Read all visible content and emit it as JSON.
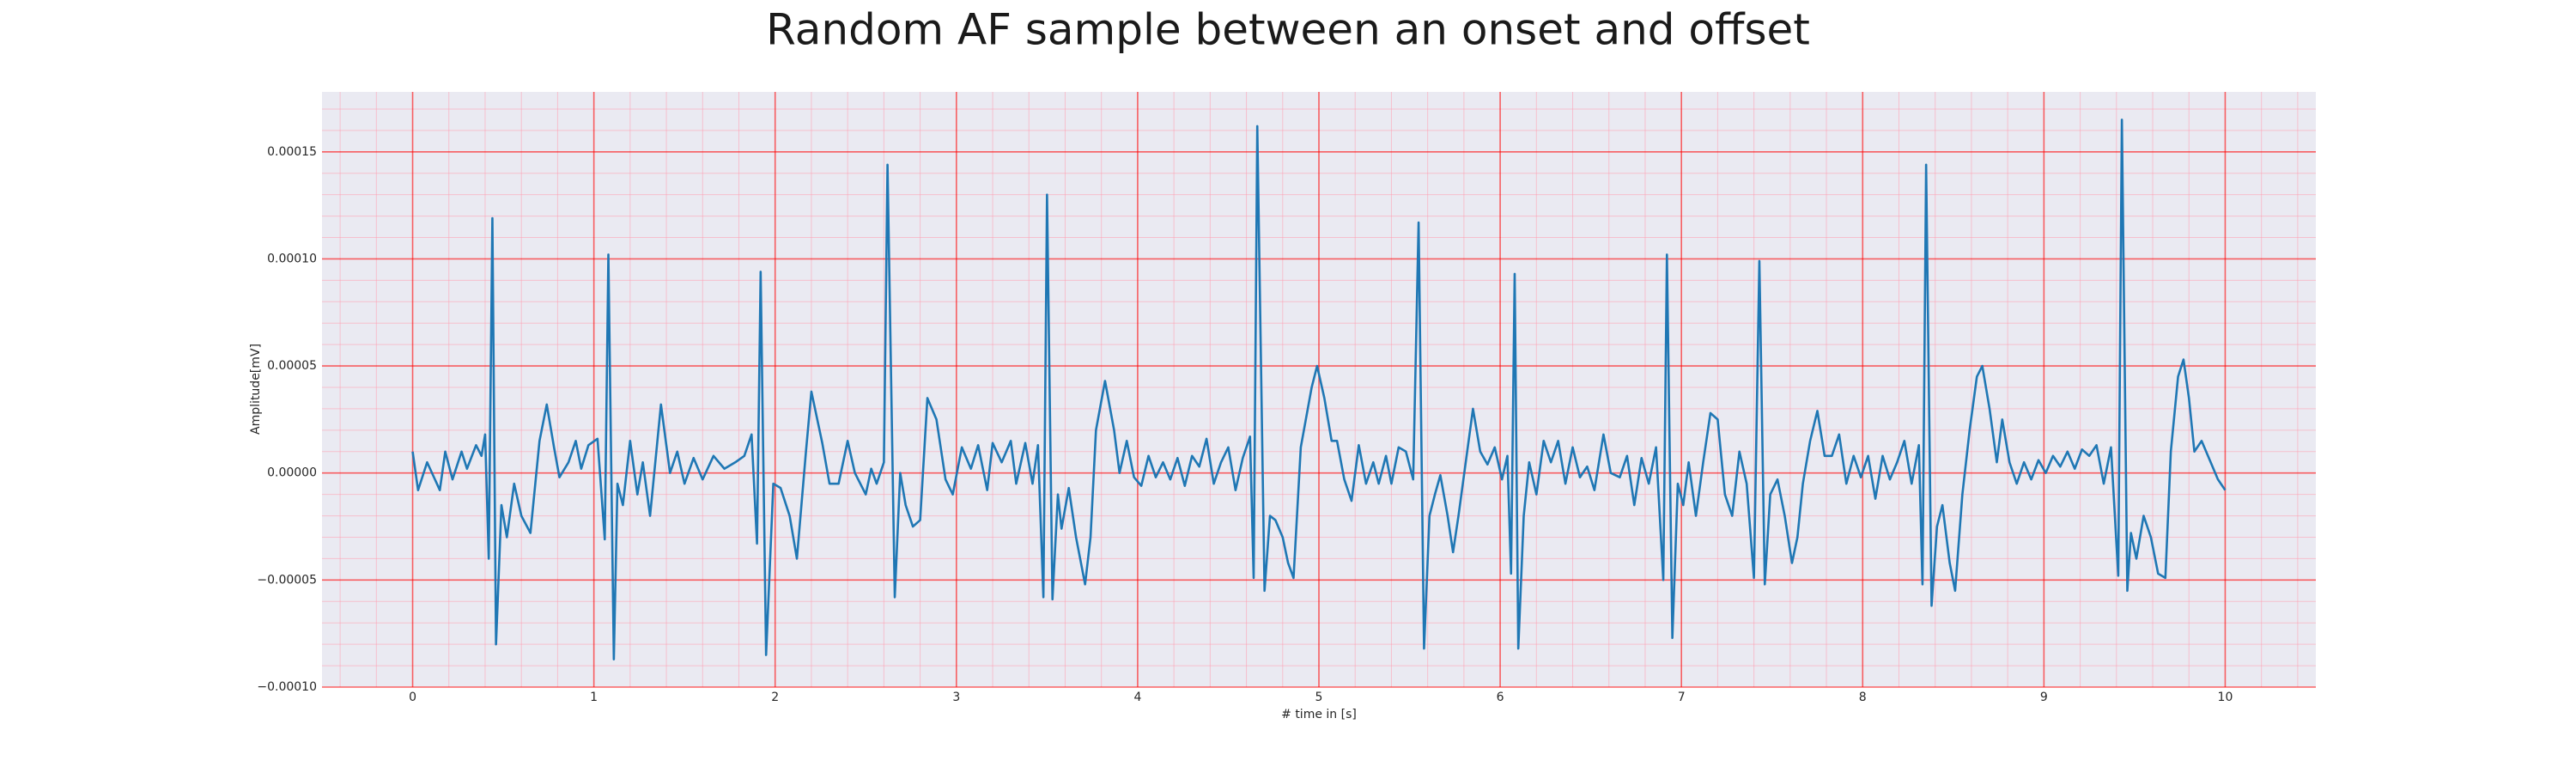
{
  "chart_data": {
    "type": "line",
    "title": "Random AF sample between an onset and offset",
    "xlabel": "# time in [s]",
    "ylabel": "Amplitude[mV]",
    "xlim": [
      -0.5,
      10.5
    ],
    "ylim": [
      -0.0001,
      0.000178
    ],
    "xticks": [
      0,
      1,
      2,
      3,
      4,
      5,
      6,
      7,
      8,
      9,
      10
    ],
    "yticks": [
      {
        "value": -0.0001,
        "label": "−0.00010"
      },
      {
        "value": -5e-05,
        "label": "−0.00005"
      },
      {
        "value": 0,
        "label": "0.00000"
      },
      {
        "value": 5e-05,
        "label": "0.00005"
      },
      {
        "value": 0.0001,
        "label": "0.00010"
      },
      {
        "value": 0.00015,
        "label": "0.00015"
      }
    ],
    "grid": true,
    "grid_color": "#ff0000",
    "minor_grid": true,
    "minor_grid_divisions": 5,
    "minor_grid_color": "#ff9db0",
    "background": "#eaeaf2",
    "x": [
      0,
      0.03,
      0.08,
      0.15,
      0.18,
      0.22,
      0.27,
      0.3,
      0.35,
      0.38,
      0.4,
      0.42,
      0.44,
      0.46,
      0.49,
      0.52,
      0.56,
      0.6,
      0.65,
      0.7,
      0.74,
      0.78,
      0.81,
      0.86,
      0.9,
      0.93,
      0.97,
      1.02,
      1.06,
      1.08,
      1.11,
      1.13,
      1.16,
      1.2,
      1.24,
      1.27,
      1.31,
      1.37,
      1.42,
      1.46,
      1.5,
      1.55,
      1.6,
      1.66,
      1.72,
      1.78,
      1.83,
      1.87,
      1.9,
      1.92,
      1.95,
      1.99,
      2.03,
      2.08,
      2.12,
      2.17,
      2.2,
      2.26,
      2.3,
      2.35,
      2.4,
      2.44,
      2.5,
      2.53,
      2.56,
      2.6,
      2.62,
      2.66,
      2.69,
      2.72,
      2.76,
      2.8,
      2.84,
      2.89,
      2.94,
      2.98,
      3.03,
      3.08,
      3.12,
      3.17,
      3.2,
      3.25,
      3.3,
      3.33,
      3.38,
      3.42,
      3.45,
      3.48,
      3.5,
      3.53,
      3.56,
      3.58,
      3.62,
      3.66,
      3.71,
      3.74,
      3.77,
      3.82,
      3.87,
      3.9,
      3.94,
      3.98,
      4.02,
      4.06,
      4.1,
      4.14,
      4.18,
      4.22,
      4.26,
      4.3,
      4.34,
      4.38,
      4.42,
      4.46,
      4.5,
      4.54,
      4.58,
      4.62,
      4.64,
      4.66,
      4.7,
      4.73,
      4.76,
      4.8,
      4.83,
      4.86,
      4.9,
      4.96,
      4.99,
      5.03,
      5.07,
      5.1,
      5.14,
      5.18,
      5.22,
      5.26,
      5.3,
      5.33,
      5.37,
      5.4,
      5.44,
      5.48,
      5.52,
      5.55,
      5.58,
      5.61,
      5.64,
      5.67,
      5.71,
      5.74,
      5.77,
      5.81,
      5.85,
      5.89,
      5.93,
      5.97,
      6.01,
      6.04,
      6.06,
      6.08,
      6.1,
      6.13,
      6.16,
      6.2,
      6.24,
      6.28,
      6.32,
      6.36,
      6.4,
      6.44,
      6.48,
      6.52,
      6.57,
      6.61,
      6.66,
      6.7,
      6.74,
      6.78,
      6.82,
      6.86,
      6.9,
      6.92,
      6.95,
      6.98,
      7.01,
      7.04,
      7.08,
      7.12,
      7.16,
      7.2,
      7.24,
      7.28,
      7.32,
      7.36,
      7.4,
      7.43,
      7.46,
      7.49,
      7.53,
      7.57,
      7.61,
      7.64,
      7.67,
      7.71,
      7.75,
      7.79,
      7.83,
      7.87,
      7.91,
      7.95,
      7.99,
      8.03,
      8.07,
      8.11,
      8.15,
      8.19,
      8.23,
      8.27,
      8.31,
      8.33,
      8.35,
      8.38,
      8.41,
      8.44,
      8.48,
      8.51,
      8.55,
      8.59,
      8.63,
      8.66,
      8.7,
      8.74,
      8.77,
      8.81,
      8.85,
      8.89,
      8.93,
      8.97,
      9.01,
      9.05,
      9.09,
      9.13,
      9.17,
      9.21,
      9.25,
      9.29,
      9.33,
      9.37,
      9.41,
      9.43,
      9.46,
      9.48,
      9.51,
      9.55,
      9.59,
      9.63,
      9.67,
      9.7,
      9.74,
      9.77,
      9.8,
      9.83,
      9.87,
      9.92,
      9.96,
      10.0
    ],
    "series": [
      {
        "color": "#1f77b4",
        "values": [
          1e-05,
          -8e-06,
          5e-06,
          -8e-06,
          1e-05,
          -3e-06,
          1e-05,
          2e-06,
          1.3e-05,
          8e-06,
          1.8e-05,
          -4e-05,
          0.000119,
          -8e-05,
          -1.5e-05,
          -3e-05,
          -5e-06,
          -2e-05,
          -2.8e-05,
          1.5e-05,
          3.2e-05,
          1.2e-05,
          -2e-06,
          5e-06,
          1.5e-05,
          2e-06,
          1.3e-05,
          1.6e-05,
          -3.1e-05,
          0.000102,
          -8.7e-05,
          -5e-06,
          -1.5e-05,
          1.5e-05,
          -1e-05,
          5e-06,
          -2e-05,
          3.2e-05,
          0,
          1e-05,
          -5e-06,
          7e-06,
          -3e-06,
          8e-06,
          2e-06,
          5e-06,
          8e-06,
          1.8e-05,
          -3.3e-05,
          9.4e-05,
          -8.5e-05,
          -5e-06,
          -7e-06,
          -2e-05,
          -4e-05,
          1e-05,
          3.8e-05,
          1.4e-05,
          -5e-06,
          -5e-06,
          1.5e-05,
          0,
          -1e-05,
          2e-06,
          -5e-06,
          5e-06,
          0.000144,
          -5.8e-05,
          0,
          -1.5e-05,
          -2.5e-05,
          -2.2e-05,
          3.5e-05,
          2.5e-05,
          -3e-06,
          -1e-05,
          1.2e-05,
          2e-06,
          1.3e-05,
          -8e-06,
          1.4e-05,
          5e-06,
          1.5e-05,
          -5e-06,
          1.4e-05,
          -5e-06,
          1.3e-05,
          -5.8e-05,
          0.00013,
          -5.9e-05,
          -1e-05,
          -2.6e-05,
          -7e-06,
          -3e-05,
          -5.2e-05,
          -3e-05,
          2e-05,
          4.3e-05,
          2e-05,
          0,
          1.5e-05,
          -2e-06,
          -6e-06,
          8e-06,
          -2e-06,
          5e-06,
          -3e-06,
          7e-06,
          -6e-06,
          8e-06,
          3e-06,
          1.6e-05,
          -5e-06,
          5e-06,
          1.2e-05,
          -8e-06,
          7e-06,
          1.7e-05,
          -4.9e-05,
          0.000162,
          -5.5e-05,
          -2e-05,
          -2.2e-05,
          -3e-05,
          -4.2e-05,
          -4.9e-05,
          1.2e-05,
          4e-05,
          5e-05,
          3.5e-05,
          1.5e-05,
          1.5e-05,
          -3e-06,
          -1.3e-05,
          1.3e-05,
          -5e-06,
          5e-06,
          -5e-06,
          8e-06,
          -5e-06,
          1.2e-05,
          1e-05,
          -3e-06,
          0.000117,
          -8.2e-05,
          -2e-05,
          -1e-05,
          -1e-06,
          -2e-05,
          -3.7e-05,
          -2e-05,
          5e-06,
          3e-05,
          1e-05,
          4e-06,
          1.2e-05,
          -3e-06,
          8e-06,
          -4.7e-05,
          9.3e-05,
          -8.2e-05,
          -2e-05,
          5e-06,
          -1e-05,
          1.5e-05,
          5e-06,
          1.5e-05,
          -5e-06,
          1.2e-05,
          -2e-06,
          3e-06,
          -8e-06,
          1.8e-05,
          0,
          -2e-06,
          8e-06,
          -1.5e-05,
          7e-06,
          -5e-06,
          1.2e-05,
          -5e-05,
          0.000102,
          -7.7e-05,
          -5e-06,
          -1.5e-05,
          5e-06,
          -2e-05,
          5e-06,
          2.8e-05,
          2.5e-05,
          -1e-05,
          -2e-05,
          1e-05,
          -5e-06,
          -4.9e-05,
          9.9e-05,
          -5.2e-05,
          -1e-05,
          -3e-06,
          -2e-05,
          -4.2e-05,
          -3e-05,
          -5e-06,
          1.5e-05,
          2.9e-05,
          8e-06,
          8e-06,
          1.8e-05,
          -5e-06,
          8e-06,
          -2e-06,
          8e-06,
          -1.2e-05,
          8e-06,
          -3e-06,
          5e-06,
          1.5e-05,
          -5e-06,
          1.3e-05,
          -5.2e-05,
          0.000144,
          -6.2e-05,
          -2.5e-05,
          -1.5e-05,
          -4.2e-05,
          -5.5e-05,
          -1e-05,
          2e-05,
          4.5e-05,
          5e-05,
          3e-05,
          5e-06,
          2.5e-05,
          5e-06,
          -5e-06,
          5e-06,
          -3e-06,
          6e-06,
          0,
          8e-06,
          3e-06,
          1e-05,
          2e-06,
          1.1e-05,
          8e-06,
          1.3e-05,
          -5e-06,
          1.2e-05,
          -4.8e-05,
          0.000165,
          -5.5e-05,
          -2.8e-05,
          -4e-05,
          -2e-05,
          -3e-05,
          -4.7e-05,
          -4.9e-05,
          1e-05,
          4.5e-05,
          5.3e-05,
          3.5e-05,
          1e-05,
          1.5e-05,
          5e-06,
          -3e-06,
          -8e-06
        ]
      }
    ]
  }
}
